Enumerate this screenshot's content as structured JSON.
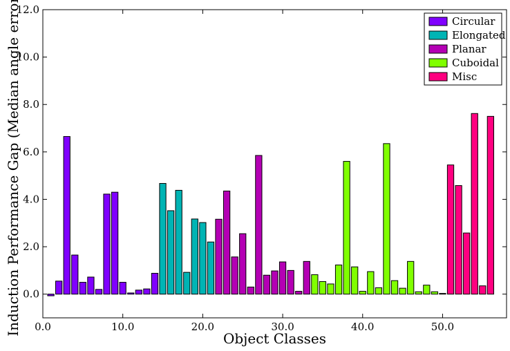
{
  "chart_data": {
    "type": "bar",
    "title": "",
    "xlabel": "Object Classes",
    "ylabel": "Induction Performance Gap (Median angle error)",
    "xlim": [
      0,
      58
    ],
    "ylim": [
      -1.0,
      12.0
    ],
    "xticks": [
      "0.0",
      "10.0",
      "20.0",
      "30.0",
      "40.0",
      "50.0"
    ],
    "xtick_values": [
      0,
      10,
      20,
      30,
      40,
      50
    ],
    "yticks": [
      "0.0",
      "2.0",
      "4.0",
      "6.0",
      "8.0",
      "10.0",
      "12.0"
    ],
    "ytick_values": [
      0,
      2,
      4,
      6,
      8,
      10,
      12
    ],
    "grid": false,
    "legend_position": "top-right",
    "series": [
      {
        "name": "Circular",
        "color": "#8000ff",
        "x": [
          1,
          2,
          3,
          4,
          5,
          6,
          7,
          8,
          9,
          10,
          11,
          12,
          13,
          14
        ],
        "values": [
          -0.07,
          0.55,
          6.65,
          1.65,
          0.5,
          0.72,
          0.2,
          4.22,
          4.3,
          0.5,
          0.05,
          0.17,
          0.22,
          0.88
        ]
      },
      {
        "name": "Elongated",
        "color": "#00b4b4",
        "x": [
          15,
          16,
          17,
          18,
          19,
          20,
          21
        ],
        "values": [
          4.67,
          3.52,
          4.38,
          0.92,
          3.17,
          3.02,
          2.2
        ]
      },
      {
        "name": "Planar",
        "color": "#b400b4",
        "x": [
          22,
          23,
          24,
          25,
          26,
          27,
          28,
          29,
          30,
          31,
          32,
          33
        ],
        "values": [
          3.16,
          4.35,
          1.57,
          2.55,
          0.3,
          5.85,
          0.8,
          0.98,
          1.36,
          1.0,
          0.12,
          1.38
        ]
      },
      {
        "name": "Cuboidal",
        "color": "#80ff00",
        "x": [
          34,
          35,
          36,
          37,
          38,
          39,
          40,
          41,
          42,
          43,
          44,
          45,
          46,
          47,
          48,
          49,
          50
        ],
        "values": [
          0.82,
          0.53,
          0.43,
          1.23,
          5.6,
          1.15,
          0.12,
          0.95,
          0.27,
          6.35,
          0.57,
          0.25,
          1.38,
          0.1,
          0.38,
          0.1,
          0.03
        ]
      },
      {
        "name": "Misc",
        "color": "#ff0080",
        "x": [
          51,
          52,
          53,
          54,
          55,
          56
        ],
        "values": [
          5.45,
          4.58,
          2.58,
          7.62,
          0.35,
          7.5
        ]
      }
    ]
  }
}
